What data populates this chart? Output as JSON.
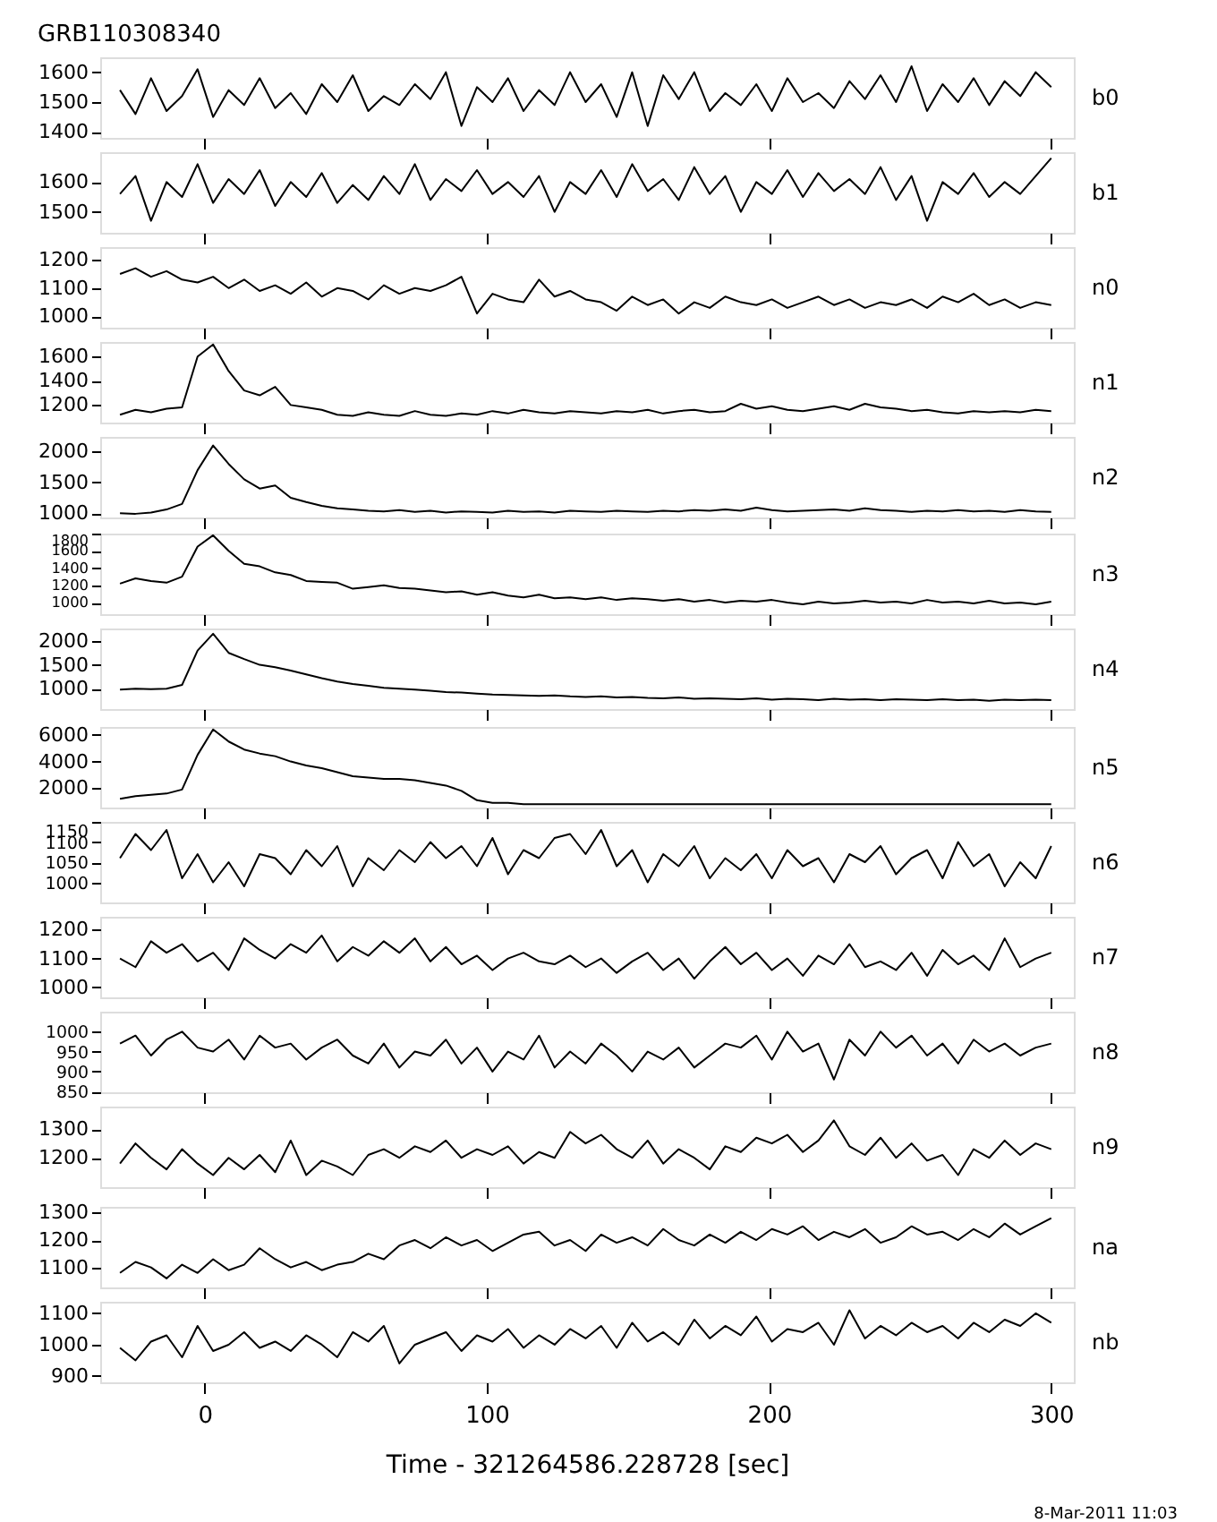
{
  "chart_data": [
    {
      "type": "line",
      "title": "GRB110308340",
      "x": [
        -30,
        -24.5,
        -19,
        -13.5,
        -8,
        -2.5,
        3,
        8.5,
        14,
        19.5,
        25,
        30.5,
        36,
        41.5,
        47,
        52.5,
        58,
        63.5,
        69,
        74.5,
        80,
        85.5,
        91,
        96.5,
        102,
        107.5,
        113,
        118.5,
        124,
        129.5,
        135,
        140.5,
        146,
        151.5,
        157,
        162.5,
        168,
        173.5,
        179,
        184.5,
        190,
        195.5,
        201,
        206.5,
        212,
        217.5,
        223,
        228.5,
        234,
        239.5,
        245,
        250.5,
        256,
        261.5,
        267,
        272.5,
        278,
        283.5,
        289,
        294.5,
        300
      ],
      "xlim": [
        -37,
        308
      ],
      "xticks": [
        0,
        100,
        200,
        300
      ],
      "ylim": [
        1380,
        1650
      ],
      "yticks": [
        1400,
        1500,
        1600
      ],
      "tick_labels": "y",
      "grid": false,
      "series": [
        {
          "name": "b0",
          "color": "#000000",
          "values": [
            1540,
            1460,
            1580,
            1470,
            1520,
            1610,
            1450,
            1540,
            1490,
            1580,
            1480,
            1530,
            1460,
            1560,
            1500,
            1590,
            1470,
            1520,
            1490,
            1560,
            1510,
            1600,
            1420,
            1550,
            1500,
            1580,
            1470,
            1540,
            1490,
            1600,
            1500,
            1560,
            1450,
            1600,
            1420,
            1590,
            1510,
            1600,
            1470,
            1530,
            1490,
            1560,
            1470,
            1580,
            1500,
            1530,
            1480,
            1570,
            1510,
            1590,
            1500,
            1620,
            1470,
            1560,
            1500,
            1580,
            1490,
            1570,
            1520,
            1600,
            1550
          ]
        }
      ]
    },
    {
      "type": "line",
      "x": [
        -30,
        -24.5,
        -19,
        -13.5,
        -8,
        -2.5,
        3,
        8.5,
        14,
        19.5,
        25,
        30.5,
        36,
        41.5,
        47,
        52.5,
        58,
        63.5,
        69,
        74.5,
        80,
        85.5,
        91,
        96.5,
        102,
        107.5,
        113,
        118.5,
        124,
        129.5,
        135,
        140.5,
        146,
        151.5,
        157,
        162.5,
        168,
        173.5,
        179,
        184.5,
        190,
        195.5,
        201,
        206.5,
        212,
        217.5,
        223,
        228.5,
        234,
        239.5,
        245,
        250.5,
        256,
        261.5,
        267,
        272.5,
        278,
        283.5,
        289,
        294.5,
        300
      ],
      "xlim": [
        -37,
        308
      ],
      "xticks": [
        0,
        100,
        200,
        300
      ],
      "ylim": [
        1430,
        1700
      ],
      "yticks": [
        1500,
        1600
      ],
      "tick_labels": "y",
      "grid": false,
      "series": [
        {
          "name": "b1",
          "color": "#000000",
          "values": [
            1560,
            1620,
            1470,
            1600,
            1550,
            1660,
            1530,
            1610,
            1560,
            1640,
            1520,
            1600,
            1550,
            1630,
            1530,
            1590,
            1540,
            1620,
            1560,
            1660,
            1540,
            1610,
            1570,
            1640,
            1560,
            1600,
            1550,
            1620,
            1500,
            1600,
            1560,
            1640,
            1550,
            1660,
            1570,
            1610,
            1540,
            1650,
            1560,
            1620,
            1500,
            1600,
            1560,
            1640,
            1550,
            1630,
            1570,
            1610,
            1560,
            1650,
            1540,
            1620,
            1470,
            1600,
            1560,
            1630,
            1550,
            1600,
            1560,
            1620,
            1680
          ]
        }
      ]
    },
    {
      "type": "line",
      "x": [
        -30,
        -24.5,
        -19,
        -13.5,
        -8,
        -2.5,
        3,
        8.5,
        14,
        19.5,
        25,
        30.5,
        36,
        41.5,
        47,
        52.5,
        58,
        63.5,
        69,
        74.5,
        80,
        85.5,
        91,
        96.5,
        102,
        107.5,
        113,
        118.5,
        124,
        129.5,
        135,
        140.5,
        146,
        151.5,
        157,
        162.5,
        168,
        173.5,
        179,
        184.5,
        190,
        195.5,
        201,
        206.5,
        212,
        217.5,
        223,
        228.5,
        234,
        239.5,
        245,
        250.5,
        256,
        261.5,
        267,
        272.5,
        278,
        283.5,
        289,
        294.5,
        300
      ],
      "xlim": [
        -37,
        308
      ],
      "xticks": [
        0,
        100,
        200,
        300
      ],
      "ylim": [
        960,
        1245
      ],
      "yticks": [
        1000,
        1100,
        1200
      ],
      "tick_labels": "y",
      "grid": false,
      "series": [
        {
          "name": "n0",
          "color": "#000000",
          "values": [
            1150,
            1170,
            1140,
            1160,
            1130,
            1120,
            1140,
            1100,
            1130,
            1090,
            1110,
            1080,
            1120,
            1070,
            1100,
            1090,
            1060,
            1110,
            1080,
            1100,
            1090,
            1110,
            1140,
            1010,
            1080,
            1060,
            1050,
            1130,
            1070,
            1090,
            1060,
            1050,
            1020,
            1070,
            1040,
            1060,
            1010,
            1050,
            1030,
            1070,
            1050,
            1040,
            1060,
            1030,
            1050,
            1070,
            1040,
            1060,
            1030,
            1050,
            1040,
            1060,
            1030,
            1070,
            1050,
            1080,
            1040,
            1060,
            1030,
            1050,
            1040
          ]
        }
      ]
    },
    {
      "type": "line",
      "x": [
        -30,
        -24.5,
        -19,
        -13.5,
        -8,
        -2.5,
        3,
        8.5,
        14,
        19.5,
        25,
        30.5,
        36,
        41.5,
        47,
        52.5,
        58,
        63.5,
        69,
        74.5,
        80,
        85.5,
        91,
        96.5,
        102,
        107.5,
        113,
        118.5,
        124,
        129.5,
        135,
        140.5,
        146,
        151.5,
        157,
        162.5,
        168,
        173.5,
        179,
        184.5,
        190,
        195.5,
        201,
        206.5,
        212,
        217.5,
        223,
        228.5,
        234,
        239.5,
        245,
        250.5,
        256,
        261.5,
        267,
        272.5,
        278,
        283.5,
        289,
        294.5,
        300
      ],
      "xlim": [
        -37,
        308
      ],
      "xticks": [
        0,
        100,
        200,
        300
      ],
      "ylim": [
        1055,
        1720
      ],
      "yticks": [
        1200,
        1400,
        1600
      ],
      "tick_labels": "y",
      "grid": false,
      "series": [
        {
          "name": "n1",
          "color": "#000000",
          "values": [
            1120,
            1160,
            1140,
            1170,
            1180,
            1600,
            1700,
            1480,
            1320,
            1280,
            1350,
            1200,
            1180,
            1160,
            1120,
            1110,
            1140,
            1120,
            1110,
            1150,
            1120,
            1110,
            1130,
            1120,
            1150,
            1130,
            1160,
            1140,
            1130,
            1150,
            1140,
            1130,
            1150,
            1140,
            1160,
            1130,
            1150,
            1160,
            1140,
            1150,
            1210,
            1170,
            1190,
            1160,
            1150,
            1170,
            1190,
            1160,
            1210,
            1180,
            1170,
            1150,
            1160,
            1140,
            1130,
            1150,
            1140,
            1150,
            1140,
            1160,
            1150
          ]
        }
      ]
    },
    {
      "type": "line",
      "x": [
        -30,
        -24.5,
        -19,
        -13.5,
        -8,
        -2.5,
        3,
        8.5,
        14,
        19.5,
        25,
        30.5,
        36,
        41.5,
        47,
        52.5,
        58,
        63.5,
        69,
        74.5,
        80,
        85.5,
        91,
        96.5,
        102,
        107.5,
        113,
        118.5,
        124,
        129.5,
        135,
        140.5,
        146,
        151.5,
        157,
        162.5,
        168,
        173.5,
        179,
        184.5,
        190,
        195.5,
        201,
        206.5,
        212,
        217.5,
        223,
        228.5,
        234,
        239.5,
        245,
        250.5,
        256,
        261.5,
        267,
        272.5,
        278,
        283.5,
        289,
        294.5,
        300
      ],
      "xlim": [
        -37,
        308
      ],
      "xticks": [
        0,
        100,
        200,
        300
      ],
      "ylim": [
        930,
        2240
      ],
      "yticks": [
        1000,
        1500,
        2000
      ],
      "tick_labels": "y",
      "grid": false,
      "series": [
        {
          "name": "n2",
          "color": "#000000",
          "values": [
            1000,
            990,
            1010,
            1060,
            1150,
            1700,
            2100,
            1800,
            1550,
            1400,
            1450,
            1250,
            1180,
            1120,
            1080,
            1060,
            1040,
            1030,
            1050,
            1020,
            1040,
            1010,
            1030,
            1020,
            1010,
            1040,
            1020,
            1030,
            1010,
            1040,
            1030,
            1020,
            1040,
            1030,
            1020,
            1040,
            1030,
            1050,
            1040,
            1060,
            1040,
            1090,
            1050,
            1030,
            1040,
            1050,
            1060,
            1040,
            1080,
            1050,
            1040,
            1020,
            1040,
            1030,
            1050,
            1030,
            1040,
            1020,
            1050,
            1030,
            1020
          ]
        }
      ]
    },
    {
      "type": "line",
      "x": [
        -30,
        -24.5,
        -19,
        -13.5,
        -8,
        -2.5,
        3,
        8.5,
        14,
        19.5,
        25,
        30.5,
        36,
        41.5,
        47,
        52.5,
        58,
        63.5,
        69,
        74.5,
        80,
        85.5,
        91,
        96.5,
        102,
        107.5,
        113,
        118.5,
        124,
        129.5,
        135,
        140.5,
        146,
        151.5,
        157,
        162.5,
        168,
        173.5,
        179,
        184.5,
        190,
        195.5,
        201,
        206.5,
        212,
        217.5,
        223,
        228.5,
        234,
        239.5,
        245,
        250.5,
        256,
        261.5,
        267,
        272.5,
        278,
        283.5,
        289,
        294.5,
        300
      ],
      "xlim": [
        -37,
        308
      ],
      "xticks": [
        0,
        100,
        200,
        300
      ],
      "ylim": [
        865,
        1800
      ],
      "yticks": [
        1000,
        1200,
        1400,
        1600,
        1800
      ],
      "tick_labels": "y",
      "grid": false,
      "series": [
        {
          "name": "n3",
          "color": "#000000",
          "values": [
            1220,
            1280,
            1250,
            1230,
            1300,
            1650,
            1780,
            1600,
            1450,
            1420,
            1350,
            1320,
            1250,
            1240,
            1230,
            1160,
            1180,
            1200,
            1170,
            1160,
            1140,
            1120,
            1130,
            1090,
            1120,
            1080,
            1060,
            1090,
            1050,
            1060,
            1040,
            1060,
            1030,
            1050,
            1040,
            1020,
            1040,
            1010,
            1030,
            1000,
            1020,
            1010,
            1030,
            1000,
            980,
            1010,
            990,
            1000,
            1020,
            1000,
            1010,
            990,
            1030,
            1000,
            1010,
            990,
            1020,
            990,
            1000,
            980,
            1010
          ]
        }
      ]
    },
    {
      "type": "line",
      "x": [
        -30,
        -24.5,
        -19,
        -13.5,
        -8,
        -2.5,
        3,
        8.5,
        14,
        19.5,
        25,
        30.5,
        36,
        41.5,
        47,
        52.5,
        58,
        63.5,
        69,
        74.5,
        80,
        85.5,
        91,
        96.5,
        102,
        107.5,
        113,
        118.5,
        124,
        129.5,
        135,
        140.5,
        146,
        151.5,
        157,
        162.5,
        168,
        173.5,
        179,
        184.5,
        190,
        195.5,
        201,
        206.5,
        212,
        217.5,
        223,
        228.5,
        234,
        239.5,
        245,
        250.5,
        256,
        261.5,
        267,
        272.5,
        278,
        283.5,
        289,
        294.5,
        300
      ],
      "xlim": [
        -37,
        308
      ],
      "xticks": [
        0,
        100,
        200,
        300
      ],
      "ylim": [
        575,
        2260
      ],
      "yticks": [
        1000,
        1500,
        2000
      ],
      "tick_labels": "y",
      "grid": false,
      "series": [
        {
          "name": "n4",
          "color": "#000000",
          "values": [
            980,
            1000,
            990,
            1000,
            1080,
            1800,
            2150,
            1750,
            1620,
            1500,
            1450,
            1380,
            1300,
            1220,
            1150,
            1100,
            1060,
            1020,
            1000,
            980,
            960,
            930,
            920,
            900,
            880,
            870,
            860,
            850,
            860,
            840,
            830,
            840,
            820,
            830,
            810,
            800,
            820,
            790,
            800,
            790,
            780,
            800,
            770,
            790,
            780,
            760,
            790,
            770,
            780,
            760,
            780,
            770,
            760,
            780,
            760,
            770,
            750,
            770,
            760,
            770,
            760
          ]
        }
      ]
    },
    {
      "type": "line",
      "x": [
        -30,
        -24.5,
        -19,
        -13.5,
        -8,
        -2.5,
        3,
        8.5,
        14,
        19.5,
        25,
        30.5,
        36,
        41.5,
        47,
        52.5,
        58,
        63.5,
        69,
        74.5,
        80,
        85.5,
        91,
        96.5,
        102,
        107.5,
        113,
        118.5,
        124,
        129.5,
        135,
        140.5,
        146,
        151.5,
        157,
        162.5,
        168,
        173.5,
        179,
        184.5,
        190,
        195.5,
        201,
        206.5,
        212,
        217.5,
        223,
        228.5,
        234,
        239.5,
        245,
        250.5,
        256,
        261.5,
        267,
        272.5,
        278,
        283.5,
        289,
        294.5,
        300
      ],
      "xlim": [
        -37,
        308
      ],
      "xticks": [
        0,
        100,
        200,
        300
      ],
      "ylim": [
        550,
        6590
      ],
      "yticks": [
        2000,
        4000,
        6000
      ],
      "tick_labels": "y",
      "grid": false,
      "series": [
        {
          "name": "n5",
          "color": "#000000",
          "values": [
            1200,
            1400,
            1500,
            1600,
            1900,
            4500,
            6400,
            5500,
            4900,
            4600,
            4400,
            4000,
            3700,
            3500,
            3200,
            2900,
            2800,
            2700,
            2700,
            2600,
            2400,
            2200,
            1800,
            1100,
            900,
            900,
            800,
            800,
            800,
            800,
            800,
            800,
            800,
            800,
            800,
            800,
            800,
            800,
            800,
            800,
            800,
            800,
            800,
            800,
            800,
            800,
            800,
            800,
            800,
            800,
            800,
            800,
            800,
            800,
            800,
            800,
            800,
            800,
            800,
            800,
            800
          ]
        }
      ]
    },
    {
      "type": "line",
      "x": [
        -30,
        -24.5,
        -19,
        -13.5,
        -8,
        -2.5,
        3,
        8.5,
        14,
        19.5,
        25,
        30.5,
        36,
        41.5,
        47,
        52.5,
        58,
        63.5,
        69,
        74.5,
        80,
        85.5,
        91,
        96.5,
        102,
        107.5,
        113,
        118.5,
        124,
        129.5,
        135,
        140.5,
        146,
        151.5,
        157,
        162.5,
        168,
        173.5,
        179,
        184.5,
        190,
        195.5,
        201,
        206.5,
        212,
        217.5,
        223,
        228.5,
        234,
        239.5,
        245,
        250.5,
        256,
        261.5,
        267,
        272.5,
        278,
        283.5,
        289,
        294.5,
        300
      ],
      "xlim": [
        -37,
        308
      ],
      "xticks": [
        0,
        100,
        200,
        300
      ],
      "ylim": [
        950,
        1150
      ],
      "yticks": [
        1000,
        1050,
        1100,
        1150
      ],
      "tick_labels": "y",
      "grid": false,
      "series": [
        {
          "name": "n6",
          "color": "#000000",
          "values": [
            1060,
            1120,
            1080,
            1130,
            1010,
            1070,
            1000,
            1050,
            990,
            1070,
            1060,
            1020,
            1080,
            1040,
            1090,
            990,
            1060,
            1030,
            1080,
            1050,
            1100,
            1060,
            1090,
            1040,
            1110,
            1020,
            1080,
            1060,
            1110,
            1120,
            1070,
            1130,
            1040,
            1080,
            1000,
            1070,
            1040,
            1090,
            1010,
            1060,
            1030,
            1070,
            1010,
            1080,
            1040,
            1060,
            1000,
            1070,
            1050,
            1090,
            1020,
            1060,
            1080,
            1010,
            1100,
            1040,
            1070,
            990,
            1050,
            1010,
            1090
          ]
        }
      ]
    },
    {
      "type": "line",
      "x": [
        -30,
        -24.5,
        -19,
        -13.5,
        -8,
        -2.5,
        3,
        8.5,
        14,
        19.5,
        25,
        30.5,
        36,
        41.5,
        47,
        52.5,
        58,
        63.5,
        69,
        74.5,
        80,
        85.5,
        91,
        96.5,
        102,
        107.5,
        113,
        118.5,
        124,
        129.5,
        135,
        140.5,
        146,
        151.5,
        157,
        162.5,
        168,
        173.5,
        179,
        184.5,
        190,
        195.5,
        201,
        206.5,
        212,
        217.5,
        223,
        228.5,
        234,
        239.5,
        245,
        250.5,
        256,
        261.5,
        267,
        272.5,
        278,
        283.5,
        289,
        294.5,
        300
      ],
      "xlim": [
        -37,
        308
      ],
      "xticks": [
        0,
        100,
        200,
        300
      ],
      "ylim": [
        965,
        1245
      ],
      "yticks": [
        1000,
        1100,
        1200
      ],
      "tick_labels": "y",
      "grid": false,
      "series": [
        {
          "name": "n7",
          "color": "#000000",
          "values": [
            1100,
            1070,
            1160,
            1120,
            1150,
            1090,
            1120,
            1060,
            1170,
            1130,
            1100,
            1150,
            1120,
            1180,
            1090,
            1140,
            1110,
            1160,
            1120,
            1170,
            1090,
            1140,
            1080,
            1110,
            1060,
            1100,
            1120,
            1090,
            1080,
            1110,
            1070,
            1100,
            1050,
            1090,
            1120,
            1060,
            1100,
            1030,
            1090,
            1140,
            1080,
            1120,
            1060,
            1100,
            1040,
            1110,
            1080,
            1150,
            1070,
            1090,
            1060,
            1120,
            1040,
            1130,
            1080,
            1110,
            1060,
            1170,
            1070,
            1100,
            1120
          ]
        }
      ]
    },
    {
      "type": "line",
      "x": [
        -30,
        -24.5,
        -19,
        -13.5,
        -8,
        -2.5,
        3,
        8.5,
        14,
        19.5,
        25,
        30.5,
        36,
        41.5,
        47,
        52.5,
        58,
        63.5,
        69,
        74.5,
        80,
        85.5,
        91,
        96.5,
        102,
        107.5,
        113,
        118.5,
        124,
        129.5,
        135,
        140.5,
        146,
        151.5,
        157,
        162.5,
        168,
        173.5,
        179,
        184.5,
        190,
        195.5,
        201,
        206.5,
        212,
        217.5,
        223,
        228.5,
        234,
        239.5,
        245,
        250.5,
        256,
        261.5,
        267,
        272.5,
        278,
        283.5,
        289,
        294.5,
        300
      ],
      "xlim": [
        -37,
        308
      ],
      "xticks": [
        0,
        100,
        200,
        300
      ],
      "ylim": [
        848,
        1050
      ],
      "yticks": [
        850,
        900,
        950,
        1000
      ],
      "tick_labels": "y",
      "grid": false,
      "series": [
        {
          "name": "n8",
          "color": "#000000",
          "values": [
            970,
            990,
            940,
            980,
            1000,
            960,
            950,
            980,
            930,
            990,
            960,
            970,
            930,
            960,
            980,
            940,
            920,
            970,
            910,
            950,
            940,
            980,
            920,
            960,
            900,
            950,
            930,
            990,
            910,
            950,
            920,
            970,
            940,
            900,
            950,
            930,
            960,
            910,
            940,
            970,
            960,
            990,
            930,
            1000,
            950,
            970,
            880,
            980,
            940,
            1000,
            960,
            990,
            940,
            970,
            920,
            980,
            950,
            970,
            940,
            960,
            970
          ]
        }
      ]
    },
    {
      "type": "line",
      "x": [
        -30,
        -24.5,
        -19,
        -13.5,
        -8,
        -2.5,
        3,
        8.5,
        14,
        19.5,
        25,
        30.5,
        36,
        41.5,
        47,
        52.5,
        58,
        63.5,
        69,
        74.5,
        80,
        85.5,
        91,
        96.5,
        102,
        107.5,
        113,
        118.5,
        124,
        129.5,
        135,
        140.5,
        146,
        151.5,
        157,
        162.5,
        168,
        173.5,
        179,
        184.5,
        190,
        195.5,
        201,
        206.5,
        212,
        217.5,
        223,
        228.5,
        234,
        239.5,
        245,
        250.5,
        256,
        261.5,
        267,
        272.5,
        278,
        283.5,
        289,
        294.5,
        300
      ],
      "xlim": [
        -37,
        308
      ],
      "xticks": [
        0,
        100,
        200,
        300
      ],
      "ylim": [
        1098,
        1378
      ],
      "yticks": [
        1200,
        1300
      ],
      "tick_labels": "y",
      "grid": false,
      "series": [
        {
          "name": "n9",
          "color": "#000000",
          "values": [
            1180,
            1250,
            1200,
            1160,
            1230,
            1180,
            1140,
            1200,
            1160,
            1210,
            1150,
            1260,
            1140,
            1190,
            1170,
            1140,
            1210,
            1230,
            1200,
            1240,
            1220,
            1260,
            1200,
            1230,
            1210,
            1240,
            1180,
            1220,
            1200,
            1290,
            1250,
            1280,
            1230,
            1200,
            1260,
            1180,
            1230,
            1200,
            1160,
            1240,
            1220,
            1270,
            1250,
            1280,
            1220,
            1260,
            1330,
            1240,
            1210,
            1270,
            1200,
            1250,
            1190,
            1210,
            1140,
            1230,
            1200,
            1260,
            1210,
            1250,
            1230
          ]
        }
      ]
    },
    {
      "type": "line",
      "x": [
        -30,
        -24.5,
        -19,
        -13.5,
        -8,
        -2.5,
        3,
        8.5,
        14,
        19.5,
        25,
        30.5,
        36,
        41.5,
        47,
        52.5,
        58,
        63.5,
        69,
        74.5,
        80,
        85.5,
        91,
        96.5,
        102,
        107.5,
        113,
        118.5,
        124,
        129.5,
        135,
        140.5,
        146,
        151.5,
        157,
        162.5,
        168,
        173.5,
        179,
        184.5,
        190,
        195.5,
        201,
        206.5,
        212,
        217.5,
        223,
        228.5,
        234,
        239.5,
        245,
        250.5,
        256,
        261.5,
        267,
        272.5,
        278,
        283.5,
        289,
        294.5,
        300
      ],
      "xlim": [
        -37,
        308
      ],
      "xticks": [
        0,
        100,
        200,
        300
      ],
      "ylim": [
        1027,
        1321
      ],
      "yticks": [
        1100,
        1200,
        1300
      ],
      "tick_labels": "y",
      "grid": false,
      "series": [
        {
          "name": "na",
          "color": "#000000",
          "values": [
            1080,
            1120,
            1100,
            1060,
            1110,
            1080,
            1130,
            1090,
            1110,
            1170,
            1130,
            1100,
            1120,
            1090,
            1110,
            1120,
            1150,
            1130,
            1180,
            1200,
            1170,
            1210,
            1180,
            1200,
            1160,
            1190,
            1220,
            1230,
            1180,
            1200,
            1160,
            1220,
            1190,
            1210,
            1180,
            1240,
            1200,
            1180,
            1220,
            1190,
            1230,
            1200,
            1240,
            1220,
            1250,
            1200,
            1230,
            1210,
            1240,
            1190,
            1210,
            1250,
            1220,
            1230,
            1200,
            1240,
            1210,
            1260,
            1220,
            1250,
            1280
          ]
        }
      ]
    },
    {
      "type": "line",
      "xlabel": "Time - 321264586.228728 [sec]",
      "annotations": [
        "8-Mar-2011 11:03"
      ],
      "x": [
        -30,
        -24.5,
        -19,
        -13.5,
        -8,
        -2.5,
        3,
        8.5,
        14,
        19.5,
        25,
        30.5,
        36,
        41.5,
        47,
        52.5,
        58,
        63.5,
        69,
        74.5,
        80,
        85.5,
        91,
        96.5,
        102,
        107.5,
        113,
        118.5,
        124,
        129.5,
        135,
        140.5,
        146,
        151.5,
        157,
        162.5,
        168,
        173.5,
        179,
        184.5,
        190,
        195.5,
        201,
        206.5,
        212,
        217.5,
        223,
        228.5,
        234,
        239.5,
        245,
        250.5,
        256,
        261.5,
        267,
        272.5,
        278,
        283.5,
        289,
        294.5,
        300
      ],
      "xlim": [
        -37,
        308
      ],
      "xticks": [
        0,
        100,
        200,
        300
      ],
      "ylim": [
        880,
        1137
      ],
      "yticks": [
        900,
        1000,
        1100
      ],
      "grid": false,
      "series": [
        {
          "name": "nb",
          "color": "#000000",
          "values": [
            990,
            950,
            1010,
            1030,
            960,
            1060,
            980,
            1000,
            1040,
            990,
            1010,
            980,
            1030,
            1000,
            960,
            1040,
            1010,
            1060,
            940,
            1000,
            1020,
            1040,
            980,
            1030,
            1010,
            1050,
            990,
            1030,
            1000,
            1050,
            1020,
            1060,
            990,
            1070,
            1010,
            1040,
            1000,
            1080,
            1020,
            1060,
            1030,
            1090,
            1010,
            1050,
            1040,
            1070,
            1000,
            1110,
            1020,
            1060,
            1030,
            1070,
            1040,
            1060,
            1020,
            1070,
            1040,
            1080,
            1060,
            1100,
            1070
          ]
        }
      ]
    }
  ]
}
